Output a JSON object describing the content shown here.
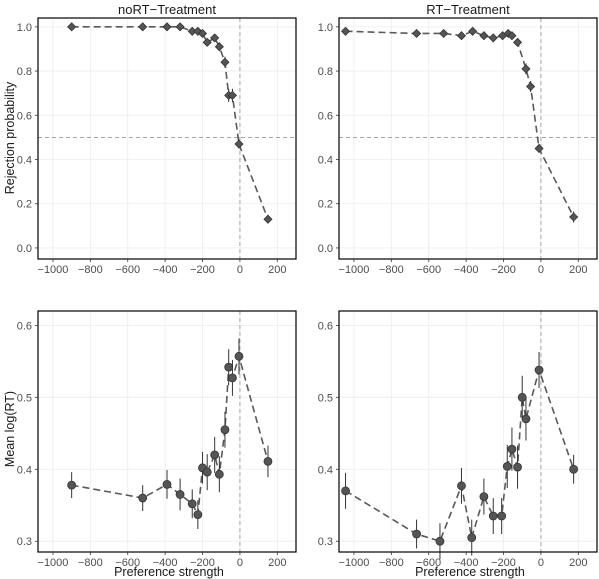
{
  "chart_data": [
    {
      "type": "line",
      "title": "noRT−Treatment",
      "xlabel": "",
      "ylabel": "Rejection probability",
      "marker": "diamond",
      "xlim": [
        -1080,
        300
      ],
      "ylim": [
        -0.05,
        1.04
      ],
      "xticks": [
        -1000,
        -800,
        -600,
        -400,
        -200,
        0,
        200
      ],
      "yticks": [
        0.0,
        0.2,
        0.4,
        0.6,
        0.8,
        1.0
      ],
      "xtick_labels": [
        "−1000",
        "−800",
        "−600",
        "−400",
        "−200",
        "0",
        "200"
      ],
      "ytick_labels": [
        "0.0",
        "0.2",
        "0.4",
        "0.6",
        "0.8",
        "1.0"
      ],
      "reference_lines": {
        "x": 0,
        "y": 0.5
      },
      "grid": true,
      "x": [
        -900,
        -520,
        -390,
        -320,
        -255,
        -225,
        -200,
        -175,
        -135,
        -110,
        -80,
        -60,
        -40,
        -5,
        150
      ],
      "y": [
        1.0,
        1.0,
        1.0,
        1.0,
        0.98,
        0.98,
        0.97,
        0.93,
        0.95,
        0.91,
        0.84,
        0.69,
        0.69,
        0.47,
        0.13
      ],
      "yerr": [
        0.005,
        0.005,
        0.005,
        0.005,
        0.01,
        0.01,
        0.01,
        0.015,
        0.015,
        0.02,
        0.025,
        0.03,
        0.03,
        0.02,
        0.02
      ]
    },
    {
      "type": "line",
      "title": "RT−Treatment",
      "xlabel": "",
      "ylabel": "",
      "marker": "diamond",
      "xlim": [
        -1080,
        300
      ],
      "ylim": [
        -0.05,
        1.04
      ],
      "xticks": [
        -1000,
        -800,
        -600,
        -400,
        -200,
        0,
        200
      ],
      "yticks": [
        0.0,
        0.2,
        0.4,
        0.6,
        0.8,
        1.0
      ],
      "xtick_labels": [
        "−1000",
        "−800",
        "−600",
        "−400",
        "−200",
        "0",
        "200"
      ],
      "ytick_labels": [
        "0.0",
        "0.2",
        "0.4",
        "0.6",
        "0.8",
        "1.0"
      ],
      "reference_lines": {
        "x": 0,
        "y": 0.5
      },
      "grid": true,
      "x": [
        -1045,
        -665,
        -520,
        -425,
        -365,
        -305,
        -255,
        -205,
        -175,
        -155,
        -125,
        -80,
        -55,
        -10,
        175
      ],
      "y": [
        0.98,
        0.97,
        0.97,
        0.96,
        0.98,
        0.96,
        0.95,
        0.96,
        0.97,
        0.96,
        0.93,
        0.81,
        0.73,
        0.45,
        0.14
      ],
      "yerr": [
        0.01,
        0.01,
        0.01,
        0.01,
        0.01,
        0.01,
        0.01,
        0.01,
        0.01,
        0.01,
        0.015,
        0.025,
        0.025,
        0.02,
        0.025
      ]
    },
    {
      "type": "line",
      "title": "",
      "xlabel": "Preference strength",
      "ylabel": "Mean log(RT)",
      "marker": "circle",
      "xlim": [
        -1080,
        300
      ],
      "ylim": [
        0.285,
        0.62
      ],
      "xticks": [
        -1000,
        -800,
        -600,
        -400,
        -200,
        0,
        200
      ],
      "yticks": [
        0.3,
        0.4,
        0.5,
        0.6
      ],
      "xtick_labels": [
        "−1000",
        "−800",
        "−600",
        "−400",
        "−200",
        "0",
        "200"
      ],
      "ytick_labels": [
        "0.3",
        "0.4",
        "0.5",
        "0.6"
      ],
      "reference_lines": {
        "x": 0
      },
      "grid": true,
      "x": [
        -900,
        -520,
        -390,
        -320,
        -255,
        -225,
        -200,
        -175,
        -135,
        -110,
        -80,
        -60,
        -40,
        -5,
        150
      ],
      "y": [
        0.378,
        0.36,
        0.379,
        0.365,
        0.352,
        0.337,
        0.402,
        0.396,
        0.42,
        0.393,
        0.455,
        0.542,
        0.527,
        0.557,
        0.411
      ],
      "yerr": [
        0.018,
        0.018,
        0.02,
        0.022,
        0.02,
        0.02,
        0.022,
        0.025,
        0.025,
        0.025,
        0.025,
        0.025,
        0.025,
        0.025,
        0.022
      ]
    },
    {
      "type": "line",
      "title": "",
      "xlabel": "Preference strength",
      "ylabel": "",
      "marker": "circle",
      "xlim": [
        -1080,
        300
      ],
      "ylim": [
        0.285,
        0.62
      ],
      "xticks": [
        -1000,
        -800,
        -600,
        -400,
        -200,
        0,
        200
      ],
      "yticks": [
        0.3,
        0.4,
        0.5,
        0.6
      ],
      "xtick_labels": [
        "−1000",
        "−800",
        "−600",
        "−400",
        "−200",
        "0",
        "200"
      ],
      "ytick_labels": [
        "0.3",
        "0.4",
        "0.5",
        "0.6"
      ],
      "reference_lines": {
        "x": 0
      },
      "grid": true,
      "x": [
        -1045,
        -665,
        -540,
        -425,
        -370,
        -305,
        -255,
        -210,
        -180,
        -155,
        -125,
        -100,
        -80,
        -10,
        175
      ],
      "y": [
        0.37,
        0.31,
        0.3,
        0.377,
        0.305,
        0.362,
        0.335,
        0.335,
        0.404,
        0.428,
        0.403,
        0.5,
        0.47,
        0.538,
        0.4
      ],
      "yerr": [
        0.025,
        0.02,
        0.025,
        0.025,
        0.025,
        0.025,
        0.025,
        0.025,
        0.03,
        0.03,
        0.03,
        0.03,
        0.03,
        0.025,
        0.02
      ]
    }
  ]
}
